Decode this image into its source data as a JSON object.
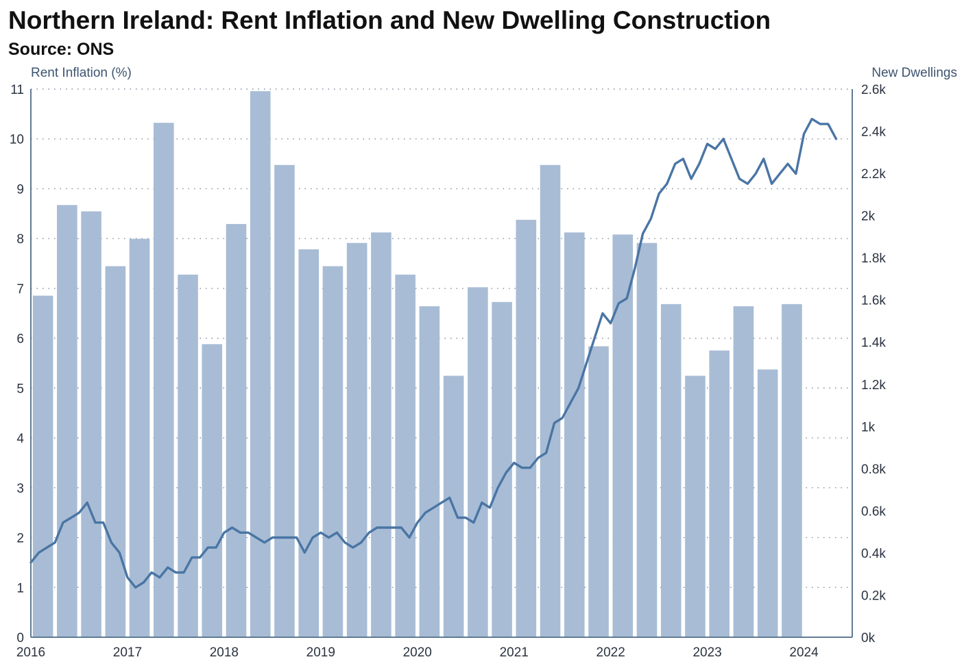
{
  "chart_data": {
    "type": "bar+line",
    "title": "Northern Ireland: Rent Inflation and New Dwelling Construction",
    "subtitle": "Source: ONS",
    "y_left_label": "Rent Inflation (%)",
    "y_right_label": "New Dwellings",
    "y_left_range": [
      0,
      11
    ],
    "y_right_range": [
      0,
      2600
    ],
    "y_left_ticks": [
      "0",
      "1",
      "2",
      "3",
      "4",
      "5",
      "6",
      "7",
      "8",
      "9",
      "10",
      "11"
    ],
    "y_right_ticks": [
      "0k",
      "0.2k",
      "0.4k",
      "0.6k",
      "0.8k",
      "1k",
      "1.2k",
      "1.4k",
      "1.6k",
      "1.8k",
      "2k",
      "2.2k",
      "2.4k",
      "2.6k"
    ],
    "x_range": [
      2016,
      2024.5
    ],
    "x_ticks": [
      "2016",
      "2017",
      "2018",
      "2019",
      "2020",
      "2021",
      "2022",
      "2023",
      "2024"
    ],
    "grid": "horizontal dotted",
    "colors": {
      "bars": "#a8bcd5",
      "line": "#4a75a4",
      "text": "#2a3340",
      "axis_title": "#3d5470"
    },
    "bars": {
      "name": "",
      "axis": "right",
      "x": [
        2016.125,
        2016.375,
        2016.625,
        2016.875,
        2017.125,
        2017.375,
        2017.625,
        2017.875,
        2018.125,
        2018.375,
        2018.625,
        2018.875,
        2019.125,
        2019.375,
        2019.625,
        2019.875,
        2020.125,
        2020.375,
        2020.625,
        2020.875,
        2021.125,
        2021.375,
        2021.625,
        2021.875,
        2022.125,
        2022.375,
        2022.625,
        2022.875,
        2023.125,
        2023.375,
        2023.625,
        2023.875
      ],
      "values": [
        1620,
        2050,
        2020,
        1760,
        1890,
        2440,
        1720,
        1390,
        1960,
        2590,
        2240,
        1840,
        1760,
        1870,
        1920,
        1720,
        1570,
        1240,
        1660,
        1590,
        1980,
        2240,
        1920,
        1380,
        1910,
        1870,
        1580,
        1240,
        1360,
        1570,
        1270,
        1580
      ]
    },
    "line": {
      "name": "",
      "axis": "left",
      "x": [
        2016.0,
        2016.083,
        2016.167,
        2016.25,
        2016.333,
        2016.417,
        2016.5,
        2016.583,
        2016.667,
        2016.75,
        2016.833,
        2016.917,
        2017.0,
        2017.083,
        2017.167,
        2017.25,
        2017.333,
        2017.417,
        2017.5,
        2017.583,
        2017.667,
        2017.75,
        2017.833,
        2017.917,
        2018.0,
        2018.083,
        2018.167,
        2018.25,
        2018.333,
        2018.417,
        2018.5,
        2018.583,
        2018.667,
        2018.75,
        2018.833,
        2018.917,
        2019.0,
        2019.083,
        2019.167,
        2019.25,
        2019.333,
        2019.417,
        2019.5,
        2019.583,
        2019.667,
        2019.75,
        2019.833,
        2019.917,
        2020.0,
        2020.083,
        2020.167,
        2020.25,
        2020.333,
        2020.417,
        2020.5,
        2020.583,
        2020.667,
        2020.75,
        2020.833,
        2020.917,
        2021.0,
        2021.083,
        2021.167,
        2021.25,
        2021.333,
        2021.417,
        2021.5,
        2021.583,
        2021.667,
        2021.75,
        2021.833,
        2021.917,
        2022.0,
        2022.083,
        2022.167,
        2022.25,
        2022.333,
        2022.417,
        2022.5,
        2022.583,
        2022.667,
        2022.75,
        2022.833,
        2022.917,
        2023.0,
        2023.083,
        2023.167,
        2023.25,
        2023.333,
        2023.417,
        2023.5,
        2023.583,
        2023.667,
        2023.75,
        2023.833,
        2023.917,
        2024.0,
        2024.083,
        2024.167,
        2024.25,
        2024.333
      ],
      "values": [
        1.5,
        1.7,
        1.8,
        1.9,
        2.3,
        2.4,
        2.5,
        2.7,
        2.3,
        2.3,
        1.9,
        1.7,
        1.2,
        1.0,
        1.1,
        1.3,
        1.2,
        1.4,
        1.3,
        1.3,
        1.6,
        1.6,
        1.8,
        1.8,
        2.1,
        2.2,
        2.1,
        2.1,
        2.0,
        1.9,
        2.0,
        2.0,
        2.0,
        2.0,
        1.7,
        2.0,
        2.1,
        2.0,
        2.1,
        1.9,
        1.8,
        1.9,
        2.1,
        2.2,
        2.2,
        2.2,
        2.2,
        2.0,
        2.3,
        2.5,
        2.6,
        2.7,
        2.8,
        2.4,
        2.4,
        2.3,
        2.7,
        2.6,
        3.0,
        3.3,
        3.5,
        3.4,
        3.4,
        3.6,
        3.7,
        4.3,
        4.4,
        4.7,
        5.0,
        5.5,
        6.0,
        6.5,
        6.3,
        6.7,
        6.8,
        7.4,
        8.1,
        8.4,
        8.9,
        9.1,
        9.5,
        9.6,
        9.2,
        9.5,
        9.9,
        9.8,
        10.0,
        9.6,
        9.2,
        9.1,
        9.3,
        9.6,
        9.1,
        9.3,
        9.5,
        9.3,
        10.1,
        10.4,
        10.3,
        10.3,
        10.0
      ]
    }
  }
}
